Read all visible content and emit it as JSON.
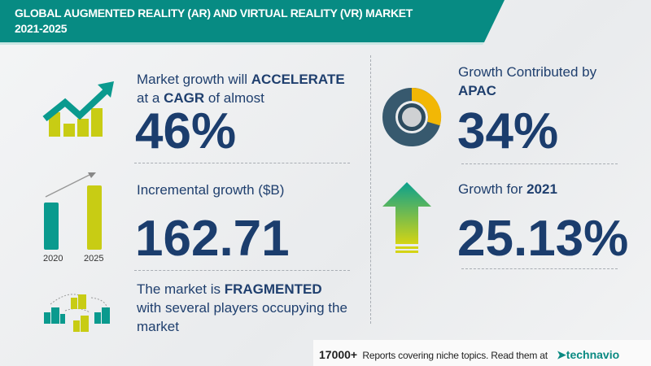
{
  "header": {
    "title_line1": "GLOBAL AUGMENTED REALITY (AR) AND VIRTUAL REALITY (VR) MARKET",
    "title_line2": "2021-2025"
  },
  "cagr": {
    "line1_prefix": "Market growth will ",
    "line1_bold": "ACCELERATE",
    "line2_prefix": "at a ",
    "line2_bold": "CAGR",
    "line2_suffix": " of almost",
    "value": "46%",
    "icon": "trend-up-bar-chart-icon"
  },
  "incremental": {
    "label": "Incremental growth ($B)",
    "value": "162.71",
    "bar_years": [
      "2020",
      "2025"
    ],
    "icon": "growth-bar-comparison-icon"
  },
  "fragmented": {
    "line1_prefix": "The market is ",
    "line1_bold": "FRAGMENTED",
    "line2": "with several players occupying the",
    "line3": "market",
    "icon": "connected-buildings-icon"
  },
  "region": {
    "line1": "Growth Contributed by",
    "line2": "APAC",
    "value": "34%",
    "icon": "donut-chart-icon"
  },
  "yoy": {
    "label_prefix": "Growth for ",
    "label_bold": "2021",
    "value": "25.13%",
    "icon": "up-arrow-icon"
  },
  "footer": {
    "count": "17000+",
    "text": "Reports covering niche topics. Read them at",
    "brand": "technavio"
  },
  "colors": {
    "teal": "#078b83",
    "navy": "#1b3d6d",
    "lime": "#c8cc14",
    "yellow": "#f2b705",
    "slate": "#37596e"
  }
}
